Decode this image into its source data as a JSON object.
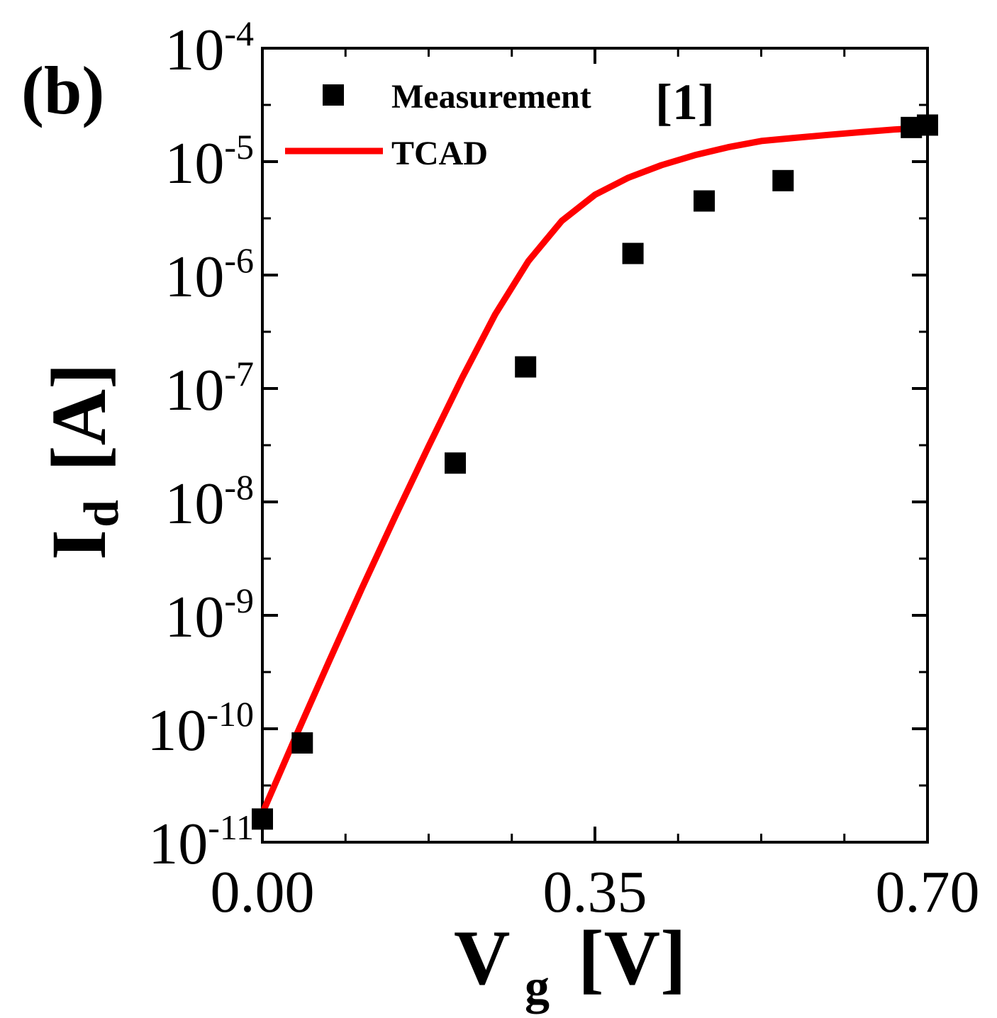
{
  "panel_label": "(b)",
  "colors": {
    "fit_line": "#ff0000",
    "marker": "#000000",
    "axis": "#000000"
  },
  "chart_data": {
    "type": "scatter",
    "title": "",
    "xlabel": "V",
    "xlabel_sub": "g",
    "xlabel_unit": "[V]",
    "ylabel": "I",
    "ylabel_sub": "d",
    "ylabel_unit": "[A]",
    "xlim": [
      0.0,
      0.7
    ],
    "ylim_log10": [
      -11,
      -4
    ],
    "yscale": "log",
    "x_tick_labels": [
      "0.00",
      "0.35",
      "0.70"
    ],
    "x_tick_values": [
      0.0,
      0.35,
      0.7
    ],
    "y_tick_exponents": [
      -11,
      -10,
      -9,
      -8,
      -7,
      -6,
      -5,
      -4
    ],
    "y_tick_labels": [
      {
        "base": "10",
        "exp": "-11"
      },
      {
        "base": "10",
        "exp": "-10"
      },
      {
        "base": "10",
        "exp": "-9"
      },
      {
        "base": "10",
        "exp": "-8"
      },
      {
        "base": "10",
        "exp": "-7"
      },
      {
        "base": "10",
        "exp": "-6"
      },
      {
        "base": "10",
        "exp": "-5"
      },
      {
        "base": "10",
        "exp": "-4"
      }
    ],
    "legend_position": "top-left",
    "series": [
      {
        "name": "Measurement",
        "name_ref": "[1]",
        "kind": "scatter",
        "marker": "square",
        "x": [
          0.0,
          0.042,
          0.203,
          0.277,
          0.39,
          0.465,
          0.548,
          0.683,
          0.7
        ],
        "y": [
          1.6e-11,
          7.5e-11,
          2.2e-08,
          1.55e-07,
          1.55e-06,
          4.5e-06,
          6.8e-06,
          2e-05,
          2.1e-05
        ]
      },
      {
        "name": "TCAD",
        "kind": "line",
        "x": [
          0.0,
          0.035,
          0.07,
          0.105,
          0.14,
          0.175,
          0.21,
          0.245,
          0.28,
          0.315,
          0.35,
          0.385,
          0.42,
          0.455,
          0.49,
          0.525,
          0.56,
          0.595,
          0.63,
          0.665,
          0.7
        ],
        "y": [
          1.8e-11,
          8.5e-11,
          3.9e-10,
          1.75e-09,
          7.5e-09,
          3.1e-08,
          1.23e-07,
          4.5e-07,
          1.33e-06,
          3e-06,
          5.1e-06,
          7.2e-06,
          9.3e-06,
          1.14e-05,
          1.34e-05,
          1.52e-05,
          1.62e-05,
          1.72e-05,
          1.82e-05,
          1.92e-05,
          2e-05
        ]
      }
    ]
  }
}
